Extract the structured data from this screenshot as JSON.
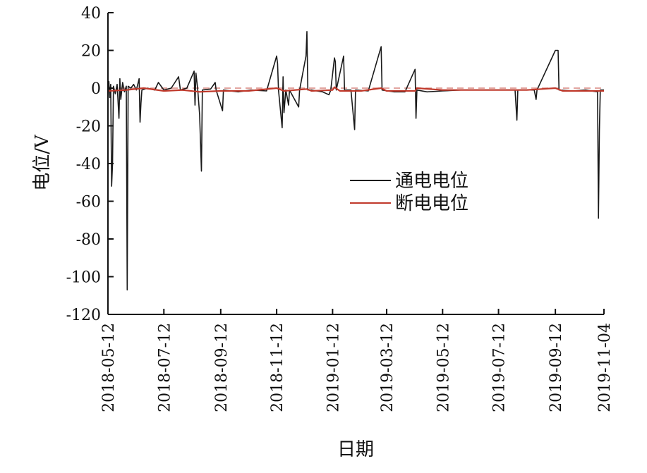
{
  "chart_data": {
    "type": "line",
    "title": "",
    "xlabel": "日期",
    "ylabel": "电位/V",
    "ylim": [
      -120,
      40
    ],
    "yticks": [
      40,
      20,
      0,
      -20,
      -40,
      -60,
      -80,
      -100,
      -120
    ],
    "ytick_labels": [
      "40",
      "20",
      "0",
      "-20",
      "-40",
      "-60",
      "-80",
      "-100",
      "-120"
    ],
    "xlim": [
      "2018-05-12",
      "2019-11-04"
    ],
    "xticks": [
      "2018-05-12",
      "2018-07-12",
      "2018-09-12",
      "2018-11-12",
      "2019-01-12",
      "2019-03-12",
      "2019-05-12",
      "2019-07-12",
      "2019-09-12",
      "2019-11-04"
    ],
    "reference_line": {
      "value": 0,
      "style": "dashed",
      "color": "#d98880"
    },
    "legend": {
      "position": "center-right"
    },
    "series": [
      {
        "name": "通电电位",
        "color": "#1a1a1a",
        "points": [
          [
            "2018-05-12",
            -1.0
          ],
          [
            "2018-05-13",
            3.5
          ],
          [
            "2018-05-14",
            -5.0
          ],
          [
            "2018-05-15",
            2.0
          ],
          [
            "2018-05-16",
            -52.0
          ],
          [
            "2018-05-17",
            -40.0
          ],
          [
            "2018-05-18",
            1.0
          ],
          [
            "2018-05-20",
            -3.0
          ],
          [
            "2018-05-22",
            2.0
          ],
          [
            "2018-05-24",
            -16.0
          ],
          [
            "2018-05-25",
            5.0
          ],
          [
            "2018-05-26",
            -6.0
          ],
          [
            "2018-05-28",
            3.0
          ],
          [
            "2018-05-30",
            -2.0
          ],
          [
            "2018-06-01",
            1.0
          ],
          [
            "2018-06-02",
            -107.0
          ],
          [
            "2018-06-03",
            1.0
          ],
          [
            "2018-06-06",
            0.0
          ],
          [
            "2018-06-09",
            2.0
          ],
          [
            "2018-06-12",
            -1.0
          ],
          [
            "2018-06-15",
            5.0
          ],
          [
            "2018-06-16",
            -18.0
          ],
          [
            "2018-06-17",
            -8.0
          ],
          [
            "2018-06-18",
            -1.0
          ],
          [
            "2018-06-24",
            0.0
          ],
          [
            "2018-07-02",
            -1.0
          ],
          [
            "2018-07-06",
            3.0
          ],
          [
            "2018-07-12",
            -1.0
          ],
          [
            "2018-07-20",
            0.0
          ],
          [
            "2018-07-28",
            6.0
          ],
          [
            "2018-07-30",
            -1.0
          ],
          [
            "2018-08-06",
            0.0
          ],
          [
            "2018-08-14",
            9.0
          ],
          [
            "2018-08-15",
            -9.0
          ],
          [
            "2018-08-16",
            8.0
          ],
          [
            "2018-08-18",
            -1.0
          ],
          [
            "2018-08-20",
            -14.0
          ],
          [
            "2018-08-22",
            -44.0
          ],
          [
            "2018-08-23",
            -1.0
          ],
          [
            "2018-09-01",
            -0.5
          ],
          [
            "2018-09-06",
            3.0
          ],
          [
            "2018-09-07",
            -1.0
          ],
          [
            "2018-09-14",
            -12.0
          ],
          [
            "2018-09-15",
            -1.0
          ],
          [
            "2018-10-01",
            -2.0
          ],
          [
            "2018-10-15",
            -1.0
          ],
          [
            "2018-11-01",
            -1.5
          ],
          [
            "2018-11-12",
            17.0
          ],
          [
            "2018-11-13",
            13.0
          ],
          [
            "2018-11-14",
            -1.0
          ],
          [
            "2018-11-18",
            -21.0
          ],
          [
            "2018-11-19",
            6.0
          ],
          [
            "2018-11-20",
            -13.0
          ],
          [
            "2018-11-22",
            -1.0
          ],
          [
            "2018-11-25",
            -9.0
          ],
          [
            "2018-11-26",
            -1.0
          ],
          [
            "2018-12-06",
            -10.0
          ],
          [
            "2018-12-07",
            -1.0
          ],
          [
            "2018-12-14",
            17.0
          ],
          [
            "2018-12-15",
            30.0
          ],
          [
            "2018-12-16",
            -1.0
          ],
          [
            "2018-12-20",
            -1.0
          ],
          [
            "2019-01-01",
            -2.0
          ],
          [
            "2019-01-08",
            -3.5
          ],
          [
            "2019-01-10",
            -1.0
          ],
          [
            "2019-01-14",
            16.0
          ],
          [
            "2019-01-15",
            14.0
          ],
          [
            "2019-01-16",
            -1.0
          ],
          [
            "2019-01-24",
            17.0
          ],
          [
            "2019-01-25",
            -1.0
          ],
          [
            "2019-02-01",
            -1.0
          ],
          [
            "2019-02-05",
            -22.0
          ],
          [
            "2019-02-06",
            -1.0
          ],
          [
            "2019-02-20",
            -1.5
          ],
          [
            "2019-03-06",
            22.0
          ],
          [
            "2019-03-07",
            -1.0
          ],
          [
            "2019-03-20",
            -2.0
          ],
          [
            "2019-04-01",
            -2.0
          ],
          [
            "2019-04-12",
            10.0
          ],
          [
            "2019-04-13",
            -16.0
          ],
          [
            "2019-04-14",
            -1.0
          ],
          [
            "2019-04-25",
            -2.0
          ],
          [
            "2019-05-12",
            -1.5
          ],
          [
            "2019-06-01",
            -1.0
          ],
          [
            "2019-06-20",
            -1.0
          ],
          [
            "2019-07-12",
            -1.0
          ],
          [
            "2019-07-30",
            -1.0
          ],
          [
            "2019-08-01",
            -17.0
          ],
          [
            "2019-08-02",
            -1.0
          ],
          [
            "2019-08-20",
            -1.0
          ],
          [
            "2019-08-22",
            -6.0
          ],
          [
            "2019-08-23",
            -1.0
          ],
          [
            "2019-09-12",
            20.0
          ],
          [
            "2019-09-15",
            20.0
          ],
          [
            "2019-09-16",
            -1.0
          ],
          [
            "2019-10-01",
            -1.5
          ],
          [
            "2019-10-15",
            -1.0
          ],
          [
            "2019-10-28",
            -2.0
          ],
          [
            "2019-10-29",
            -69.0
          ],
          [
            "2019-10-30",
            -23.0
          ],
          [
            "2019-10-31",
            -1.0
          ],
          [
            "2019-11-04",
            -1.0
          ]
        ]
      },
      {
        "name": "断电电位",
        "color": "#c0392b",
        "points": [
          [
            "2018-05-12",
            -1.5
          ],
          [
            "2018-06-01",
            -1.0
          ],
          [
            "2018-06-20",
            0.0
          ],
          [
            "2018-07-12",
            -1.5
          ],
          [
            "2018-08-01",
            -1.0
          ],
          [
            "2018-08-20",
            -2.0
          ],
          [
            "2018-09-12",
            -1.5
          ],
          [
            "2018-10-12",
            -1.5
          ],
          [
            "2018-11-12",
            0.0
          ],
          [
            "2018-11-20",
            -1.5
          ],
          [
            "2018-12-15",
            -0.5
          ],
          [
            "2018-12-20",
            -1.5
          ],
          [
            "2019-01-12",
            -1.0
          ],
          [
            "2019-01-14",
            0.5
          ],
          [
            "2019-01-20",
            -1.5
          ],
          [
            "2019-02-12",
            -1.5
          ],
          [
            "2019-03-06",
            0.0
          ],
          [
            "2019-03-12",
            -1.5
          ],
          [
            "2019-04-12",
            -1.5
          ],
          [
            "2019-04-14",
            0.0
          ],
          [
            "2019-05-12",
            -1.0
          ],
          [
            "2019-06-12",
            -1.0
          ],
          [
            "2019-07-12",
            -1.0
          ],
          [
            "2019-08-12",
            -1.0
          ],
          [
            "2019-09-12",
            0.0
          ],
          [
            "2019-09-20",
            -1.5
          ],
          [
            "2019-10-12",
            -1.5
          ],
          [
            "2019-11-04",
            -1.5
          ]
        ]
      }
    ]
  }
}
